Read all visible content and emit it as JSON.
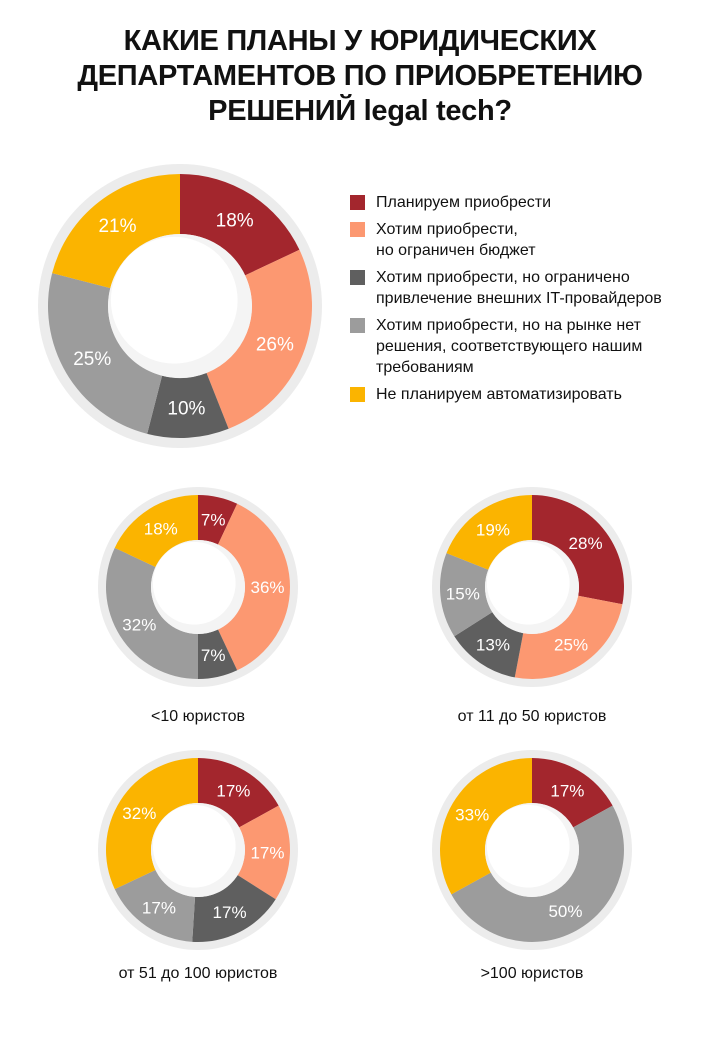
{
  "title": {
    "line1": "КАКИЕ ПЛАНЫ У ЮРИДИЧЕСКИХ",
    "line2": "ДЕПАРТАМЕНТОВ ПО ПРИОБРЕТЕНИЮ",
    "line3": "РЕШЕНИЙ legal tech?"
  },
  "legend": [
    {
      "lines": [
        "Планируем приобрести"
      ],
      "color": "#a3262d"
    },
    {
      "lines": [
        "Хотим приобрести,",
        "но ограничен бюджет"
      ],
      "color": "#fc9871"
    },
    {
      "lines": [
        "Хотим приобрести, но ограничено",
        "привлечение внешних IT-провайдеров"
      ],
      "color": "#5f5f5f"
    },
    {
      "lines": [
        "Хотим приобрести, но на рынке нет",
        "решения, соответствующего нашим",
        "требованиям"
      ],
      "color": "#9c9c9c"
    },
    {
      "lines": [
        "Не планируем автоматизировать"
      ],
      "color": "#fbb400"
    }
  ],
  "captions": {
    "small_firm": "<10 юристов",
    "mid_firm": "от 11 до 50 юристов",
    "large_firm": "от 51 до 100 юристов",
    "xl_firm": ">100 юристов"
  },
  "chart_data": [
    {
      "type": "pie",
      "categories": [
        "Планируем приобрести",
        "Хотим приобрести, но ограничен бюджет",
        "Хотим приобрести, но ограничено привлечение внешних IT-провайдеров",
        "Хотим приобрести, но на рынке нет решения, соответствующего нашим требованиям",
        "Не планируем автоматизировать"
      ],
      "values": [
        18,
        26,
        10,
        25,
        21
      ],
      "labels": [
        "18%",
        "26%",
        "10%",
        "25%",
        "21%"
      ],
      "colors": [
        "#a3262d",
        "#fc9871",
        "#5f5f5f",
        "#9c9c9c",
        "#fbb400"
      ]
    },
    {
      "type": "pie",
      "title": "<10 юристов",
      "categories": [
        "Планируем приобрести",
        "Хотим приобрести, но ограничен бюджет",
        "Хотим приобрести, но ограничено привлечение внешних IT-провайдеров",
        "Хотим приобрести, но на рынке нет решения, соответствующего нашим требованиям",
        "Не планируем автоматизировать"
      ],
      "values": [
        7,
        36,
        7,
        32,
        18
      ],
      "labels": [
        "7%",
        "36%",
        "7%",
        "32%",
        "18%"
      ],
      "colors": [
        "#a3262d",
        "#fc9871",
        "#5f5f5f",
        "#9c9c9c",
        "#fbb400"
      ]
    },
    {
      "type": "pie",
      "title": "от 11 до 50 юристов",
      "categories": [
        "Планируем приобрести",
        "Хотим приобрести, но ограничен бюджет",
        "Хотим приобрести, но ограничено привлечение внешних IT-провайдеров",
        "Хотим приобрести, но на рынке нет решения, соответствующего нашим требованиям",
        "Не планируем автоматизировать"
      ],
      "values": [
        28,
        25,
        13,
        15,
        19
      ],
      "labels": [
        "28%",
        "25%",
        "13%",
        "15%",
        "19%"
      ],
      "colors": [
        "#a3262d",
        "#fc9871",
        "#5f5f5f",
        "#9c9c9c",
        "#fbb400"
      ]
    },
    {
      "type": "pie",
      "title": "от 51 до 100 юристов",
      "categories": [
        "Планируем приобрести",
        "Хотим приобрести, но ограничен бюджет",
        "Хотим приобрести, но ограничено привлечение внешних IT-провайдеров",
        "Хотим приобрести, но на рынке нет решения, соответствующего нашим требованиям",
        "Не планируем автоматизировать"
      ],
      "values": [
        17,
        17,
        17,
        17,
        32
      ],
      "labels": [
        "17%",
        "17%",
        "17%",
        "17%",
        "32%"
      ],
      "colors": [
        "#a3262d",
        "#fc9871",
        "#5f5f5f",
        "#9c9c9c",
        "#fbb400"
      ]
    },
    {
      "type": "pie",
      "title": ">100 юристов",
      "categories": [
        "Планируем приобрести",
        "Хотим приобрести, но на рынке нет решения, соответствующего нашим требованиям",
        "Не планируем автоматизировать"
      ],
      "values": [
        17,
        50,
        33
      ],
      "labels": [
        "17%",
        "50%",
        "33%"
      ],
      "colors": [
        "#a3262d",
        "#9c9c9c",
        "#fbb400"
      ]
    }
  ]
}
